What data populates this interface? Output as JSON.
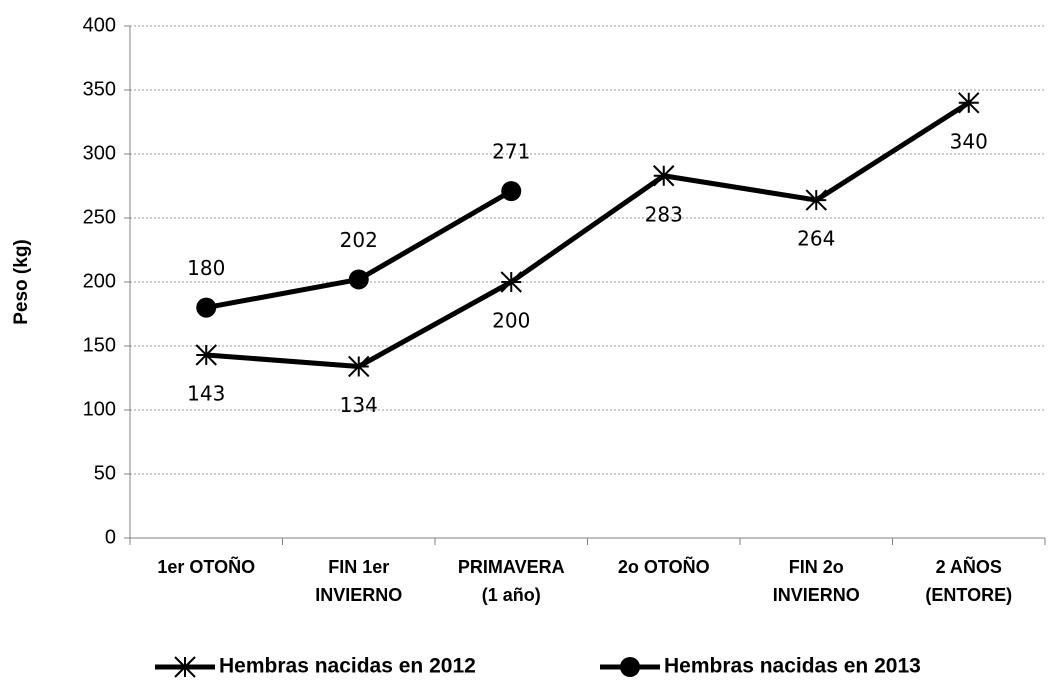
{
  "chart_data": {
    "type": "line",
    "y_label": "Peso (kg)",
    "categories": [
      "1er OTOÑO",
      "FIN 1er\nINVIERNO",
      "PRIMAVERA\n(1 año)",
      "2o OTOÑO",
      "FIN 2o\nINVIERNO",
      "2 AÑOS\n(ENTORE)"
    ],
    "series": [
      {
        "name": "Hembras nacidas en 2012",
        "color": "#000000",
        "marker": "star",
        "values": [
          143,
          134,
          200,
          283,
          264,
          340
        ]
      },
      {
        "name": "Hembras nacidas en 2013",
        "color": "#000000",
        "marker": "circle",
        "values": [
          180,
          202,
          271,
          null,
          null,
          null
        ]
      }
    ],
    "ylim": [
      0,
      400
    ],
    "yticks": [
      0,
      50,
      100,
      150,
      200,
      250,
      300,
      350,
      400
    ],
    "grid": true,
    "legend": "bottom"
  }
}
